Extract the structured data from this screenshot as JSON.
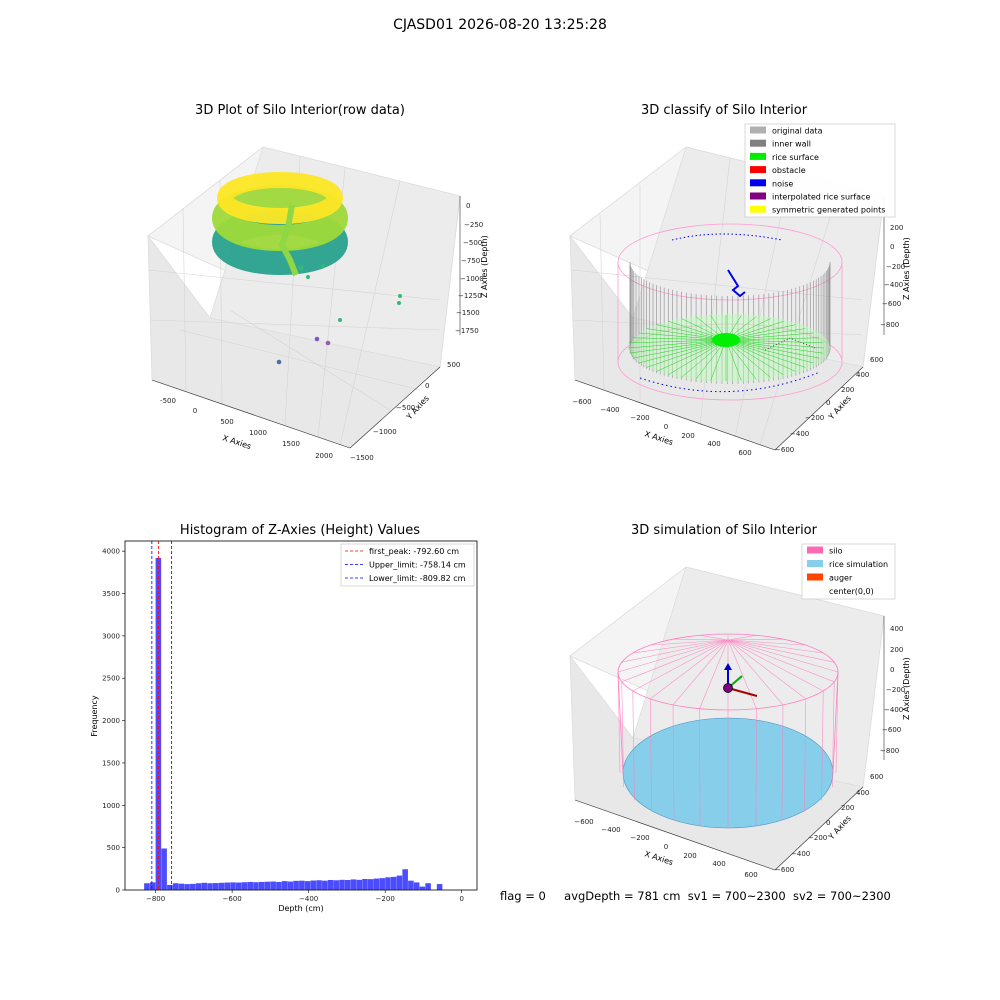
{
  "figure": {
    "suptitle": "CJASD01 2026-08-20 13:25:28",
    "status": {
      "flag": "flag = 0",
      "avg_depth": "avgDepth = 781 cm",
      "sv1": "sv1 = 700~2300",
      "sv2": "sv2 = 700~2300"
    }
  },
  "chart_data": [
    {
      "type": "scatter3d",
      "title": "3D Plot of Silo Interior(row data)",
      "xlabel": "X Axies",
      "ylabel": "Y Axies",
      "zlabel": "Z Axies (Depth)",
      "x_ticks": [
        "-500",
        "0",
        "500",
        "1000",
        "1500",
        "2000"
      ],
      "y_ticks": [
        "500",
        "0",
        "−500",
        "−1000",
        "−1500"
      ],
      "z_ticks": [
        "0",
        "−250",
        "−500",
        "−750",
        "−1000",
        "−1250",
        "−1500",
        "−1750"
      ],
      "colormap": "viridis",
      "grid": true
    },
    {
      "type": "scatter3d",
      "title": "3D classify of Silo Interior",
      "xlabel": "X Axies",
      "ylabel": "Y Axies",
      "zlabel": "Z Axies (Depth)",
      "x_ticks": [
        "−600",
        "−400",
        "−200",
        "0",
        "200",
        "400",
        "600"
      ],
      "y_ticks": [
        "600",
        "400",
        "200",
        "0",
        "−200",
        "−400",
        "−600"
      ],
      "z_ticks": [
        "200",
        "0",
        "−200",
        "−400",
        "−600",
        "−800"
      ],
      "legend_position": "top-right",
      "legend": [
        {
          "label": "original data",
          "color": "#b0b0b0"
        },
        {
          "label": "inner wall",
          "color": "#808080"
        },
        {
          "label": "rice surface",
          "color": "#00ee00"
        },
        {
          "label": "obstacle",
          "color": "#ff0000"
        },
        {
          "label": "noise",
          "color": "#0000ee"
        },
        {
          "label": "interpolated rice surface",
          "color": "#800080"
        },
        {
          "label": "symmetric generated points",
          "color": "#ffff00"
        }
      ],
      "grid": true
    },
    {
      "type": "bar",
      "title": "Histogram of Z-Axies (Height) Values",
      "xlabel": "Depth (cm)",
      "ylabel": "Frequency",
      "xlim": [
        -880,
        40
      ],
      "ylim": [
        0,
        4120
      ],
      "x_ticks": [
        -800,
        -600,
        -400,
        -200,
        0
      ],
      "x_tick_labels": [
        "−800",
        "−600",
        "−400",
        "−200",
        "0"
      ],
      "y_ticks": [
        0,
        500,
        1000,
        1500,
        2000,
        2500,
        3000,
        3500,
        4000
      ],
      "bin_width": 15,
      "bin_start": -830,
      "values": [
        80,
        90,
        3920,
        490,
        60,
        80,
        75,
        70,
        72,
        80,
        85,
        80,
        82,
        85,
        88,
        90,
        88,
        92,
        95,
        92,
        95,
        98,
        100,
        95,
        105,
        100,
        108,
        110,
        105,
        112,
        115,
        110,
        118,
        115,
        120,
        118,
        125,
        120,
        130,
        128,
        135,
        140,
        150,
        155,
        170,
        245,
        110,
        90,
        40,
        80,
        0,
        70
      ],
      "bar_color": "#0000ff",
      "vlines": [
        {
          "label": "first_peak: -792.60 cm",
          "x": -792.6,
          "color": "#ff0000"
        },
        {
          "label": "Upper_limit: -758.14 cm",
          "x": -758.14,
          "color": "#0000ff"
        },
        {
          "label": "Lower_limit: -809.82 cm",
          "x": -809.82,
          "color": "#0000ff"
        }
      ],
      "legend_position": "top-right"
    },
    {
      "type": "surface3d",
      "title": "3D simulation of Silo Interior",
      "xlabel": "X Axies",
      "ylabel": "Y Axies",
      "zlabel": "Z Axies (Depth)",
      "x_ticks": [
        "−600",
        "−400",
        "−200",
        "0",
        "200",
        "400",
        "600"
      ],
      "y_ticks": [
        "600",
        "400",
        "200",
        "0",
        "−200",
        "−400",
        "−600"
      ],
      "z_ticks": [
        "400",
        "200",
        "0",
        "−200",
        "−400",
        "−600",
        "−800"
      ],
      "legend_position": "top-right",
      "legend": [
        {
          "label": "silo",
          "color": "#ff69b4"
        },
        {
          "label": "rice simulation",
          "color": "#87ceeb"
        },
        {
          "label": "auger",
          "color": "#ff4500"
        },
        {
          "label": "center(0,0)",
          "color": "#ffffff"
        }
      ],
      "grid": true
    }
  ]
}
